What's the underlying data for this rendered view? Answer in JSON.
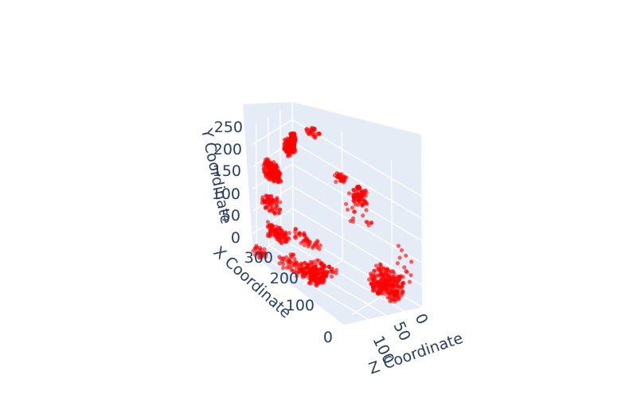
{
  "chart_data": {
    "type": "scatter3d",
    "title": "",
    "marker_color": "#ff0000",
    "marker_opacity": 0.6,
    "background": "#e5ecf6",
    "grid": true,
    "axes": {
      "x": {
        "title": "X Coordinate",
        "range": [
          0,
          330
        ],
        "ticks": [
          0,
          100,
          200,
          300
        ],
        "tick_labels": [
          "0",
          "100",
          "200",
          "300"
        ]
      },
      "y": {
        "title": "Y Coordinate",
        "range": [
          0,
          290
        ],
        "ticks": [
          0,
          50,
          100,
          150,
          200,
          250
        ],
        "tick_labels": [
          "0",
          "50",
          "100",
          "150",
          "200",
          "250"
        ]
      },
      "z": {
        "title": "Z Coordinate",
        "range": [
          0,
          130
        ],
        "ticks": [
          0,
          50,
          100
        ],
        "tick_labels": [
          "0",
          "50",
          "100"
        ]
      }
    },
    "clusters": [
      {
        "x": [
          300,
          325
        ],
        "y": [
          190,
          230
        ],
        "z": [
          10,
          25
        ],
        "n": 160
      },
      {
        "x": [
          20,
          40
        ],
        "y": [
          190,
          230
        ],
        "z": [
          2,
          6
        ],
        "n": 160
      },
      {
        "x": [
          60,
          90
        ],
        "y": [
          190,
          225
        ],
        "z": [
          2,
          8
        ],
        "n": 80
      },
      {
        "x": [
          110,
          180
        ],
        "y": [
          200,
          230
        ],
        "z": [
          80,
          90
        ],
        "n": 70
      },
      {
        "x": [
          195,
          240
        ],
        "y": [
          250,
          260
        ],
        "z": [
          70,
          80
        ],
        "n": 30
      },
      {
        "x": [
          5,
          60
        ],
        "y": [
          255,
          265
        ],
        "z": [
          20,
          30
        ],
        "n": 25
      },
      {
        "x": [
          260,
          300
        ],
        "y": [
          110,
          140
        ],
        "z": [
          5,
          20
        ],
        "n": 60
      },
      {
        "x": [
          270,
          310
        ],
        "y": [
          55,
          85
        ],
        "z": [
          10,
          30
        ],
        "n": 90
      },
      {
        "x": [
          300,
          330
        ],
        "y": [
          0,
          20
        ],
        "z": [
          0,
          10
        ],
        "n": 30
      },
      {
        "x": [
          200,
          300
        ],
        "y": [
          0,
          15
        ],
        "z": [
          20,
          60
        ],
        "n": 110
      },
      {
        "x": [
          120,
          270
        ],
        "y": [
          0,
          15
        ],
        "z": [
          40,
          60
        ],
        "n": 110
      },
      {
        "x": [
          0,
          60
        ],
        "y": [
          0,
          15
        ],
        "z": [
          5,
          30
        ],
        "n": 40
      },
      {
        "x": [
          100,
          200
        ],
        "y": [
          30,
          80
        ],
        "z": [
          100,
          125
        ],
        "n": 240
      },
      {
        "x": [
          0,
          80
        ],
        "y": [
          30,
          120
        ],
        "z": [
          110,
          125
        ],
        "n": 12
      },
      {
        "x": [
          100,
          200
        ],
        "y": [
          160,
          220
        ],
        "z": [
          60,
          100
        ],
        "n": 20
      }
    ]
  }
}
